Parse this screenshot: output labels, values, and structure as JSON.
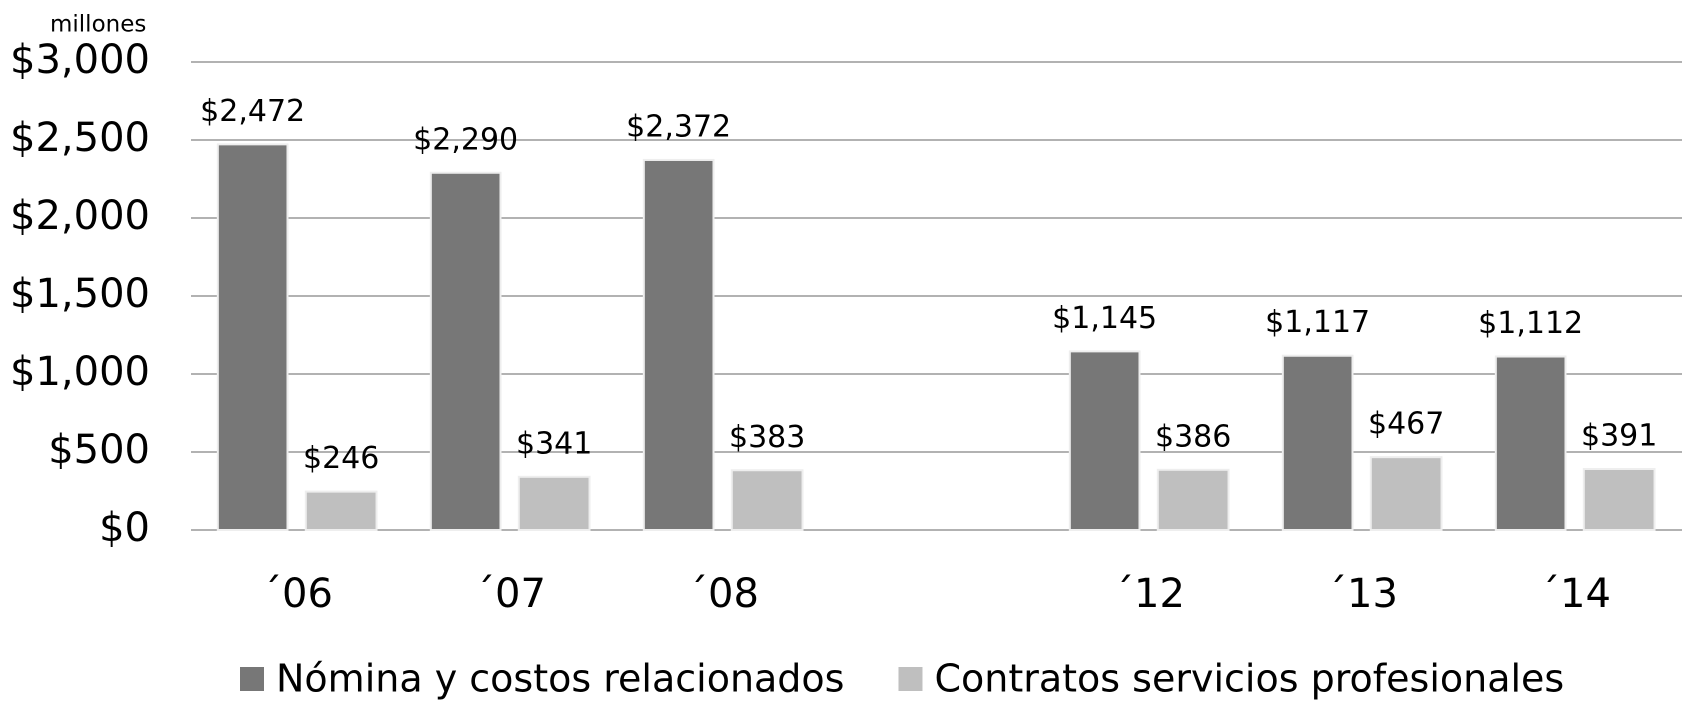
{
  "chart_data": {
    "type": "bar",
    "y_axis_label": "millones",
    "categories": [
      "´06",
      "´07",
      "´08",
      null,
      "´12",
      "´13",
      "´14"
    ],
    "series": [
      {
        "name": "Nómina y costos relacionados",
        "color": "#777777",
        "values": [
          2472,
          2290,
          2372,
          null,
          1145,
          1117,
          1112
        ],
        "value_labels": [
          "$2,472",
          "$2,290",
          "$2,372",
          null,
          "$1,145",
          "$1,117",
          "$1,112"
        ]
      },
      {
        "name": "Contratos servicios profesionales",
        "color": "#bfbfbf",
        "values": [
          246,
          341,
          383,
          null,
          386,
          467,
          391
        ],
        "value_labels": [
          "$246",
          "$341",
          "$383",
          null,
          "$386",
          "$467",
          "$391"
        ]
      }
    ],
    "ylim": [
      0,
      3000
    ],
    "yticks": [
      {
        "value": 0,
        "label": "$0"
      },
      {
        "value": 500,
        "label": "$500"
      },
      {
        "value": 1000,
        "label": "$1,000"
      },
      {
        "value": 1500,
        "label": "$1,500"
      },
      {
        "value": 2000,
        "label": "$2,000"
      },
      {
        "value": 2500,
        "label": "$2,500"
      },
      {
        "value": 3000,
        "label": "$3,000"
      }
    ],
    "grid": true,
    "legend": "bottom"
  }
}
